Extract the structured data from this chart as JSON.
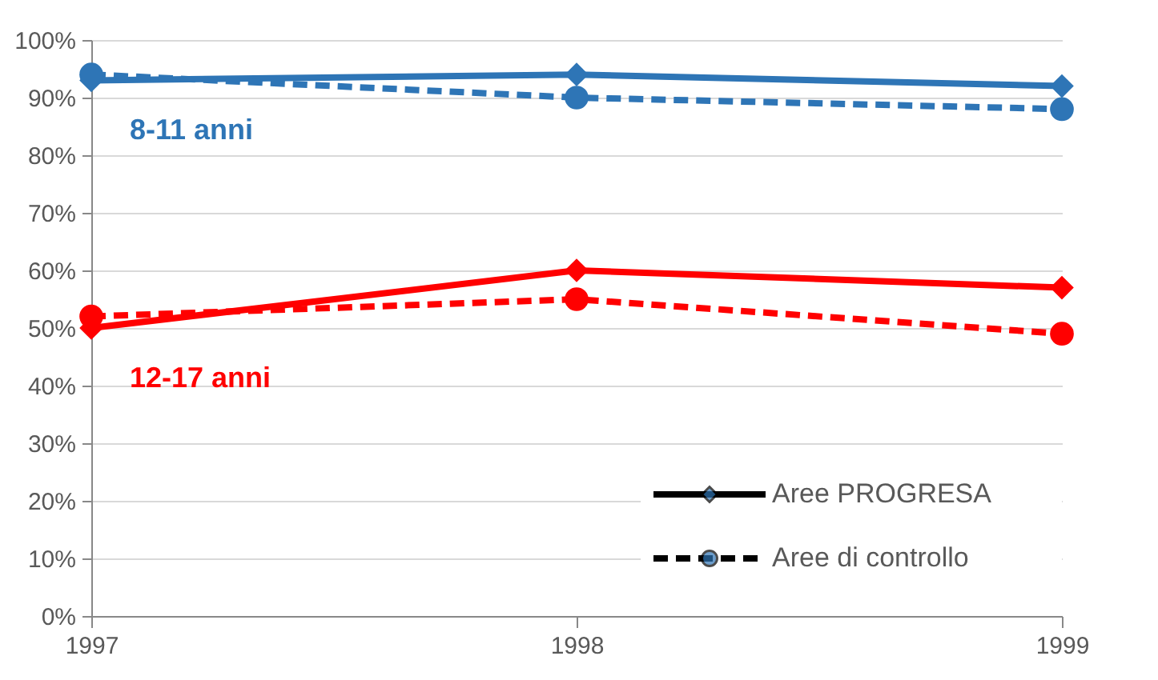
{
  "chart_data": {
    "type": "line",
    "x": [
      1997,
      1998,
      1999
    ],
    "series": [
      {
        "name": "Aree PROGRESA",
        "color": "#2e75b6",
        "values": [
          93,
          94,
          92
        ],
        "line_style": "solid",
        "marker": "diamond"
      },
      {
        "name": "Aree di controllo",
        "color": "#2e75b6",
        "values": [
          94,
          90,
          88
        ],
        "line_style": "dashed",
        "marker": "circle"
      },
      {
        "color": "#ff0000",
        "values": [
          50,
          60,
          57
        ],
        "line_style": "solid",
        "marker": "diamond"
      },
      {
        "color": "#ff0000",
        "values": [
          52,
          55,
          49
        ],
        "line_style": "dashed",
        "marker": "circle"
      }
    ],
    "annotations": [
      "8-11 anni",
      "12-17 anni"
    ],
    "xlim": [
      1997,
      1999
    ],
    "xticks": [
      1997,
      1998,
      1999
    ],
    "ylim": [
      0,
      100
    ],
    "yticks": [
      {
        "value": 0,
        "label": "0%"
      },
      {
        "value": 10,
        "label": "10%"
      },
      {
        "value": 20,
        "label": "20%"
      },
      {
        "value": 30,
        "label": "30%"
      },
      {
        "value": 40,
        "label": "40%"
      },
      {
        "value": 50,
        "label": "50%"
      },
      {
        "value": 60,
        "label": "60%"
      },
      {
        "value": 70,
        "label": "70%"
      },
      {
        "value": 80,
        "label": "80%"
      },
      {
        "value": 90,
        "label": "90%"
      },
      {
        "value": 100,
        "label": "100%"
      }
    ],
    "grid": "y",
    "legend": "bottom right"
  }
}
